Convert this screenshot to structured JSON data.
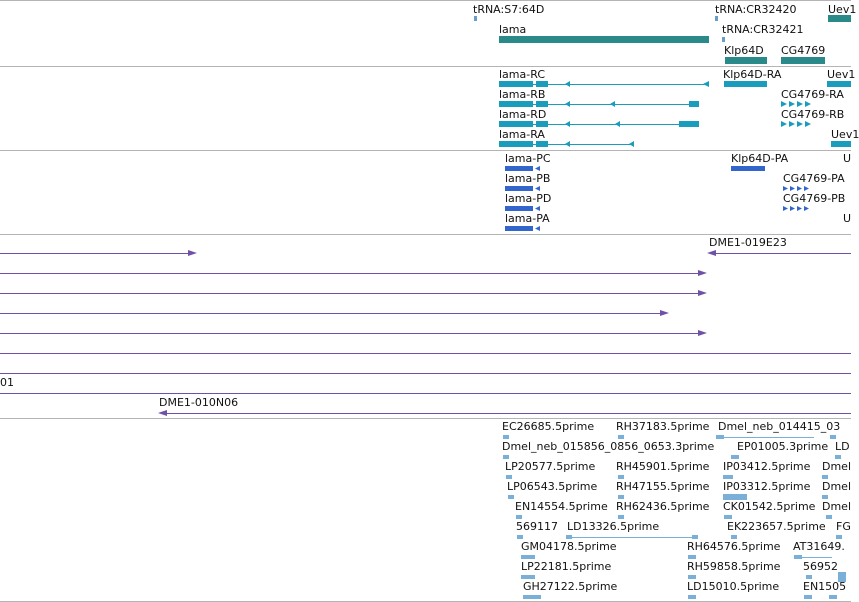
{
  "colors": {
    "trna": "#6a9cc8",
    "gene": "#2a8a8a",
    "transcript": "#1a9cbc",
    "protein": "#3366cc",
    "clone": "#7050a8",
    "est": "#7ab0d8",
    "divider": "#b4b4b4"
  },
  "tracks": {
    "genes": {
      "labels": [
        "tRNA:S7:64D",
        "tRNA:CR32420",
        "Uev1",
        "lama",
        "tRNA:CR32421",
        "Klp64D",
        "CG4769"
      ]
    },
    "transcripts": {
      "labels": [
        "lama-RC",
        "Klp64D-RA",
        "Uev1",
        "lama-RB",
        "CG4769-RA",
        "lama-RD",
        "CG4769-RB",
        "lama-RA",
        "Uev1"
      ]
    },
    "proteins": {
      "labels": [
        "lama-PC",
        "Klp64D-PA",
        "U",
        "lama-PB",
        "CG4769-PA",
        "lama-PD",
        "CG4769-PB",
        "lama-PA",
        "U"
      ]
    },
    "clones": {
      "labels": [
        "DME1-019E23",
        "01",
        "DME1-010N06"
      ]
    },
    "ests": {
      "labels": [
        "EC26685.5prime",
        "RH37183.5prime",
        "Dmel_neb_014415_03",
        "Dmel_neb_015856_0856_0653.3prime",
        "EP01005.3prime",
        "LD",
        "LP20577.5prime",
        "RH45901.5prime",
        "IP03412.5prime",
        "Dmel",
        "LP06543.5prime",
        "RH47155.5prime",
        "IP03312.5prime",
        "Dmel",
        "EN14554.5prime",
        "RH62436.5prime",
        "CK01542.5prime",
        "Dmel",
        "569117",
        "LD13326.5prime",
        "EK223657.5prime",
        "FG",
        "GM04178.5prime",
        "RH64576.5prime",
        "AT31649.",
        "LP22181.5prime",
        "RH59858.5prime",
        "56952",
        "GH27122.5prime",
        "LD15010.5prime",
        "EN1505"
      ]
    }
  }
}
